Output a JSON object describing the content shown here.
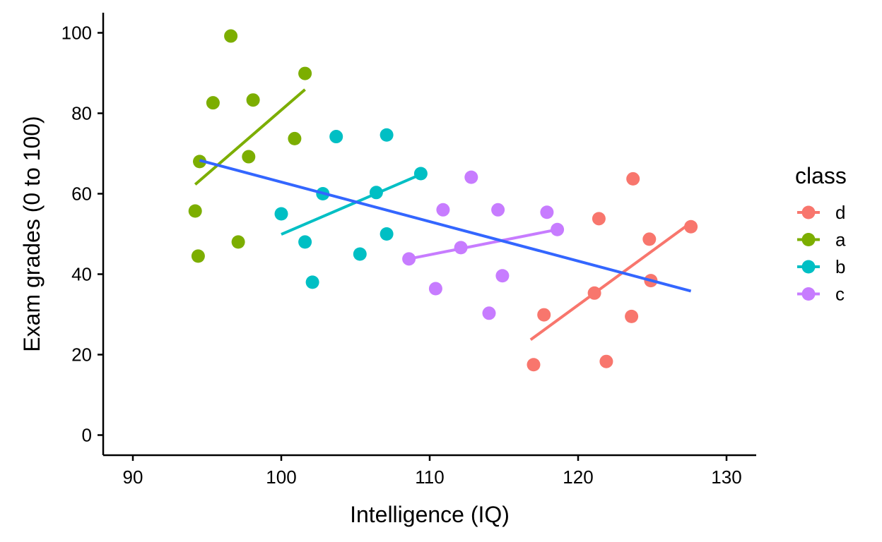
{
  "chart_data": {
    "type": "scatter",
    "title": "",
    "xlabel": "Intelligence (IQ)",
    "ylabel": "Exam grades (0 to 100)",
    "xlim": [
      88,
      132
    ],
    "ylim": [
      -5,
      105
    ],
    "x_ticks": [
      90,
      100,
      110,
      120,
      130
    ],
    "y_ticks": [
      0,
      20,
      40,
      60,
      80,
      100
    ],
    "grid": false,
    "legend": {
      "title": "class",
      "placement": "right",
      "entries": [
        "d",
        "a",
        "b",
        "c"
      ]
    },
    "colors": {
      "d": "#F8766D",
      "a": "#7CAE00",
      "b": "#00BFC4",
      "c": "#C77CFF",
      "overall": "#3366FF"
    },
    "series": [
      {
        "name": "d",
        "points": [
          {
            "x": 117.0,
            "y": 17.5
          },
          {
            "x": 117.7,
            "y": 29.9
          },
          {
            "x": 121.1,
            "y": 35.3
          },
          {
            "x": 121.4,
            "y": 53.8
          },
          {
            "x": 121.9,
            "y": 18.3
          },
          {
            "x": 123.6,
            "y": 29.5
          },
          {
            "x": 123.7,
            "y": 63.7
          },
          {
            "x": 124.8,
            "y": 48.7
          },
          {
            "x": 124.9,
            "y": 38.4
          },
          {
            "x": 127.6,
            "y": 51.8
          }
        ],
        "fit": {
          "x": [
            116.8,
            127.6
          ],
          "y": [
            23.7,
            52.8
          ]
        }
      },
      {
        "name": "a",
        "points": [
          {
            "x": 94.2,
            "y": 55.7
          },
          {
            "x": 94.4,
            "y": 44.5
          },
          {
            "x": 94.5,
            "y": 68.0
          },
          {
            "x": 95.4,
            "y": 82.6
          },
          {
            "x": 96.6,
            "y": 99.2
          },
          {
            "x": 97.1,
            "y": 48.0
          },
          {
            "x": 97.8,
            "y": 69.2
          },
          {
            "x": 98.1,
            "y": 83.3
          },
          {
            "x": 100.9,
            "y": 73.7
          },
          {
            "x": 101.6,
            "y": 89.9
          }
        ],
        "fit": {
          "x": [
            94.2,
            101.6
          ],
          "y": [
            62.3,
            85.9
          ]
        }
      },
      {
        "name": "b",
        "points": [
          {
            "x": 100.0,
            "y": 55.0
          },
          {
            "x": 101.6,
            "y": 48.0
          },
          {
            "x": 102.1,
            "y": 38.0
          },
          {
            "x": 102.8,
            "y": 60.0
          },
          {
            "x": 103.7,
            "y": 74.2
          },
          {
            "x": 105.3,
            "y": 45.0
          },
          {
            "x": 106.4,
            "y": 60.3
          },
          {
            "x": 107.1,
            "y": 74.6
          },
          {
            "x": 107.1,
            "y": 50.0
          },
          {
            "x": 109.4,
            "y": 65.0
          }
        ],
        "fit": {
          "x": [
            100.0,
            109.4
          ],
          "y": [
            49.9,
            64.8
          ]
        }
      },
      {
        "name": "c",
        "points": [
          {
            "x": 108.6,
            "y": 43.8
          },
          {
            "x": 110.4,
            "y": 36.4
          },
          {
            "x": 110.9,
            "y": 56.0
          },
          {
            "x": 112.1,
            "y": 46.6
          },
          {
            "x": 112.8,
            "y": 64.1
          },
          {
            "x": 114.0,
            "y": 30.3
          },
          {
            "x": 114.6,
            "y": 56.0
          },
          {
            "x": 114.9,
            "y": 39.6
          },
          {
            "x": 117.9,
            "y": 55.4
          },
          {
            "x": 118.6,
            "y": 51.1
          }
        ],
        "fit": {
          "x": [
            108.6,
            118.6
          ],
          "y": [
            43.8,
            51.1
          ]
        }
      }
    ],
    "overall_fit": {
      "x": [
        94.5,
        127.6
      ],
      "y": [
        68.3,
        35.8
      ]
    }
  }
}
